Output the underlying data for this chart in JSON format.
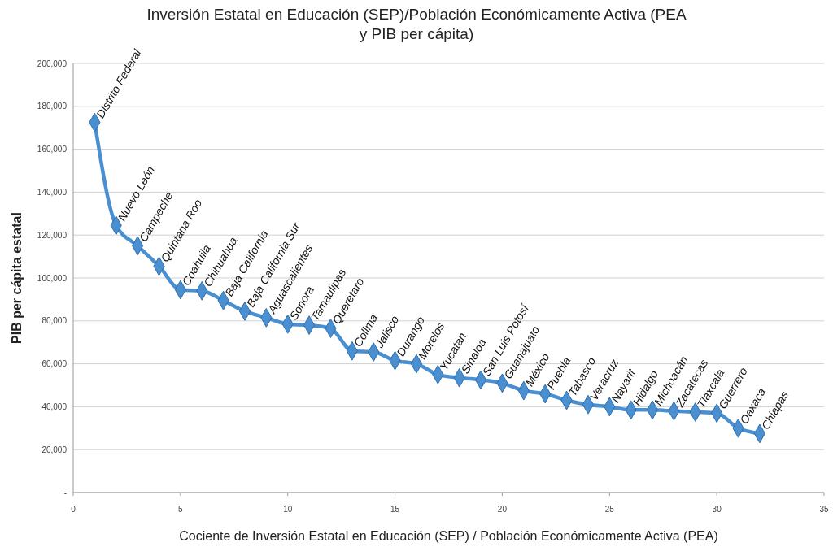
{
  "chart_data": {
    "type": "line",
    "title": "Inversión Estatal en Educación (SEP)/Población Económicamente Activa (PEA\ny PIB per cápita)",
    "xlabel": "Cociente de Inversión Estatal en Educación (SEP) / Población Económicamente Activa (PEA)",
    "ylabel": "PIB per cápita estatal",
    "x": [
      1,
      2,
      3,
      4,
      5,
      6,
      7,
      8,
      9,
      10,
      11,
      12,
      13,
      14,
      15,
      16,
      17,
      18,
      19,
      20,
      21,
      22,
      23,
      24,
      25,
      26,
      27,
      28,
      29,
      30,
      31,
      32
    ],
    "series": [
      {
        "color": "#4a8fd0",
        "values": [
          172500,
          124500,
          115000,
          105500,
          94500,
          94000,
          89500,
          84500,
          81500,
          78500,
          78000,
          76500,
          66000,
          65500,
          61500,
          60000,
          55000,
          53500,
          52500,
          51000,
          47500,
          46000,
          43000,
          41000,
          40000,
          38500,
          38500,
          38000,
          37500,
          37000,
          30000,
          27500
        ]
      }
    ],
    "marker": "diamond",
    "line_style": "solid",
    "grid": "y",
    "xlim": [
      0,
      35
    ],
    "xticks": [
      0,
      5,
      10,
      15,
      20,
      25,
      30,
      35
    ],
    "ylim": [
      0,
      200000
    ],
    "yticks": [
      {
        "value": 0,
        "label": "-"
      },
      {
        "value": 20000,
        "label": "20,000"
      },
      {
        "value": 40000,
        "label": "40,000"
      },
      {
        "value": 60000,
        "label": "60,000"
      },
      {
        "value": 80000,
        "label": "80,000"
      },
      {
        "value": 100000,
        "label": "100,000"
      },
      {
        "value": 120000,
        "label": "120,000"
      },
      {
        "value": 140000,
        "label": "140,000"
      },
      {
        "value": 160000,
        "label": "160,000"
      },
      {
        "value": 180000,
        "label": "180,000"
      },
      {
        "value": 200000,
        "label": "200,000"
      }
    ],
    "annotations": [
      {
        "text": "Distrito Federal",
        "x": 1,
        "y": 172500
      },
      {
        "text": "Nuevo León",
        "x": 2,
        "y": 124500
      },
      {
        "text": "Campeche",
        "x": 3,
        "y": 115000
      },
      {
        "text": "Quintana Roo",
        "x": 4,
        "y": 105500
      },
      {
        "text": "Coahuila",
        "x": 5,
        "y": 94500
      },
      {
        "text": "Chihuahua",
        "x": 6,
        "y": 94000
      },
      {
        "text": "Baja California",
        "x": 7,
        "y": 89500
      },
      {
        "text": "Baja California Sur",
        "x": 8,
        "y": 84500
      },
      {
        "text": "Aguascalientes",
        "x": 9,
        "y": 81500
      },
      {
        "text": "Sonora",
        "x": 10,
        "y": 78500
      },
      {
        "text": "Tamaulipas",
        "x": 11,
        "y": 78000
      },
      {
        "text": "Querétaro",
        "x": 12,
        "y": 76500
      },
      {
        "text": "Colima",
        "x": 13,
        "y": 66000
      },
      {
        "text": "Jalisco",
        "x": 14,
        "y": 65500
      },
      {
        "text": "Durango",
        "x": 15,
        "y": 61500
      },
      {
        "text": "Morelos",
        "x": 16,
        "y": 60000
      },
      {
        "text": "Yucatán",
        "x": 17,
        "y": 55000
      },
      {
        "text": "Sinaloa",
        "x": 18,
        "y": 53500
      },
      {
        "text": "San Luis Potosí",
        "x": 19,
        "y": 52500
      },
      {
        "text": "Guanajuato",
        "x": 20,
        "y": 51000
      },
      {
        "text": "México",
        "x": 21,
        "y": 47500
      },
      {
        "text": "Puebla",
        "x": 22,
        "y": 46000
      },
      {
        "text": "Tabasco",
        "x": 23,
        "y": 43000
      },
      {
        "text": "Veracruz",
        "x": 24,
        "y": 41000
      },
      {
        "text": "Nayarit",
        "x": 25,
        "y": 40000
      },
      {
        "text": "Hidalgo",
        "x": 26,
        "y": 38500
      },
      {
        "text": "Michoacán",
        "x": 27,
        "y": 38500
      },
      {
        "text": "Zacatecas",
        "x": 28,
        "y": 38000
      },
      {
        "text": "Tlaxcala",
        "x": 29,
        "y": 37500
      },
      {
        "text": "Guerrero",
        "x": 30,
        "y": 37000
      },
      {
        "text": "Oaxaca",
        "x": 31,
        "y": 30000
      },
      {
        "text": "Chiapas",
        "x": 32,
        "y": 27500
      }
    ]
  }
}
